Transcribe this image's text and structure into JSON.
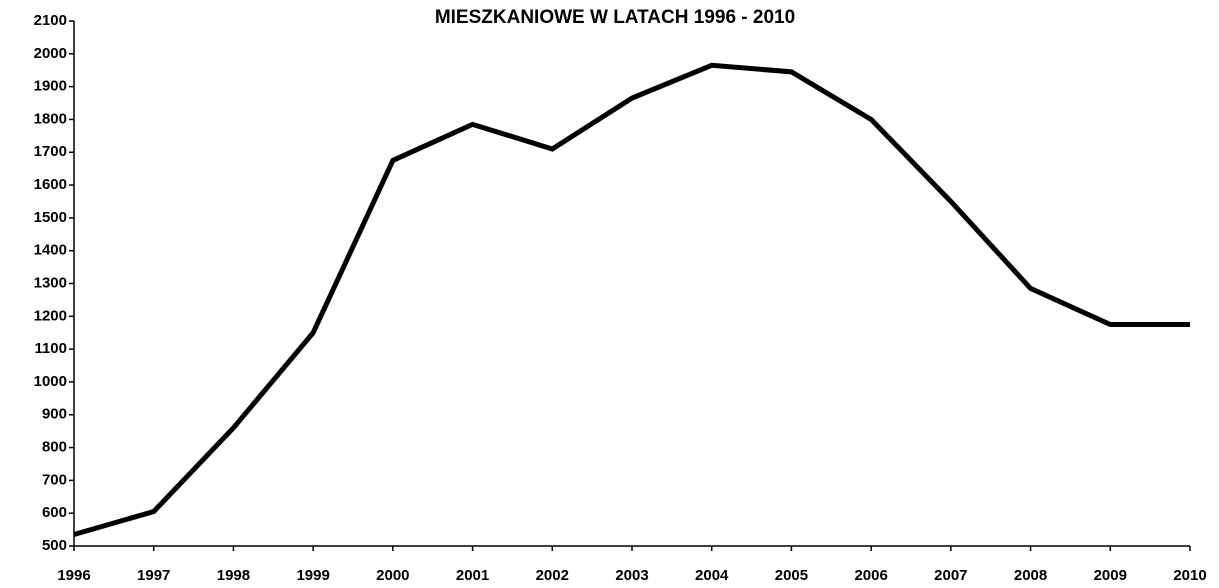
{
  "chart_data": {
    "type": "line",
    "title": "MIESZKANIOWE W LATACH 1996 - 2010",
    "categories": [
      "1996",
      "1997",
      "1998",
      "1999",
      "2000",
      "2001",
      "2002",
      "2003",
      "2004",
      "2005",
      "2006",
      "2007",
      "2008",
      "2009",
      "2010"
    ],
    "series": [
      {
        "name": null,
        "color": "#000000",
        "values": [
          535,
          605,
          860,
          1150,
          1675,
          1785,
          1710,
          1865,
          1965,
          1945,
          1800,
          1550,
          1285,
          1175,
          1175
        ]
      }
    ],
    "ylim": [
      500,
      2100
    ],
    "yticks": [
      500,
      600,
      700,
      800,
      900,
      1000,
      1100,
      1200,
      1300,
      1400,
      1500,
      1600,
      1700,
      1800,
      1900,
      2000,
      2100
    ],
    "grid": false
  }
}
